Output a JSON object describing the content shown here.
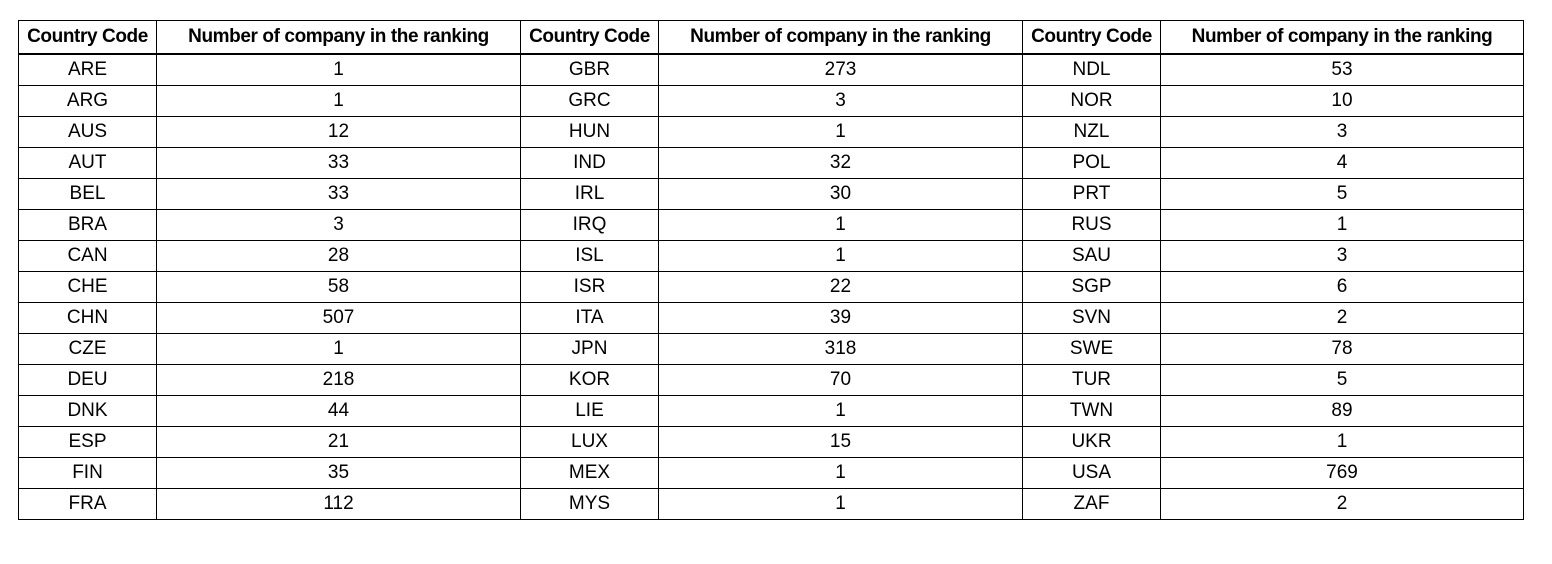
{
  "table": {
    "headers": [
      "Country Code",
      "Number of company in the ranking",
      "Country Code",
      "Number of company in the ranking",
      "Country Code",
      "Number of company in the ranking"
    ],
    "rows": [
      [
        "ARE",
        "1",
        "GBR",
        "273",
        "NDL",
        "53"
      ],
      [
        "ARG",
        "1",
        "GRC",
        "3",
        "NOR",
        "10"
      ],
      [
        "AUS",
        "12",
        "HUN",
        "1",
        "NZL",
        "3"
      ],
      [
        "AUT",
        "33",
        "IND",
        "32",
        "POL",
        "4"
      ],
      [
        "BEL",
        "33",
        "IRL",
        "30",
        "PRT",
        "5"
      ],
      [
        "BRA",
        "3",
        "IRQ",
        "1",
        "RUS",
        "1"
      ],
      [
        "CAN",
        "28",
        "ISL",
        "1",
        "SAU",
        "3"
      ],
      [
        "CHE",
        "58",
        "ISR",
        "22",
        "SGP",
        "6"
      ],
      [
        "CHN",
        "507",
        "ITA",
        "39",
        "SVN",
        "2"
      ],
      [
        "CZE",
        "1",
        "JPN",
        "318",
        "SWE",
        "78"
      ],
      [
        "DEU",
        "218",
        "KOR",
        "70",
        "TUR",
        "5"
      ],
      [
        "DNK",
        "44",
        "LIE",
        "1",
        "TWN",
        "89"
      ],
      [
        "ESP",
        "21",
        "LUX",
        "15",
        "UKR",
        "1"
      ],
      [
        "FIN",
        "35",
        "MEX",
        "1",
        "USA",
        "769"
      ],
      [
        "FRA",
        "112",
        "MYS",
        "1",
        "ZAF",
        "2"
      ]
    ]
  }
}
